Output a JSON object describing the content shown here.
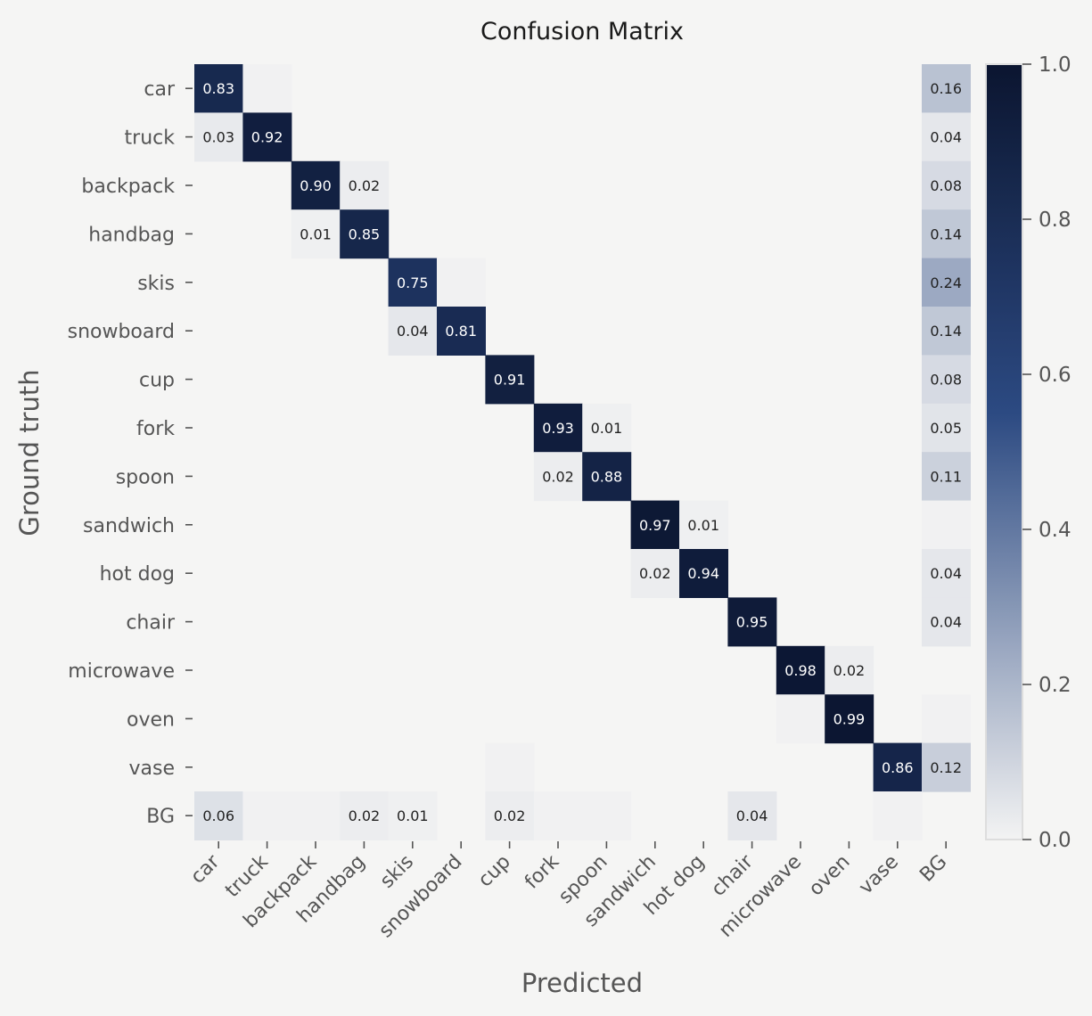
{
  "chart_data": {
    "type": "heatmap",
    "title": "Confusion Matrix",
    "xlabel": "Predicted",
    "ylabel": "Ground truth",
    "rows": [
      "car",
      "truck",
      "backpack",
      "handbag",
      "skis",
      "snowboard",
      "cup",
      "fork",
      "spoon",
      "sandwich",
      "hot dog",
      "chair",
      "microwave",
      "oven",
      "vase",
      "BG"
    ],
    "cols": [
      "car",
      "truck",
      "backpack",
      "handbag",
      "skis",
      "snowboard",
      "cup",
      "fork",
      "spoon",
      "sandwich",
      "hot dog",
      "chair",
      "microwave",
      "oven",
      "vase",
      "BG"
    ],
    "values": [
      [
        0.83,
        0.005,
        0,
        0,
        0,
        0,
        0,
        0,
        0,
        0,
        0,
        0,
        0,
        0,
        0,
        0.16
      ],
      [
        0.03,
        0.92,
        0,
        0,
        0,
        0,
        0,
        0,
        0,
        0,
        0,
        0,
        0,
        0,
        0,
        0.04
      ],
      [
        0,
        0,
        0.9,
        0.02,
        0,
        0,
        0,
        0,
        0,
        0,
        0,
        0,
        0,
        0,
        0,
        0.08
      ],
      [
        0,
        0,
        0.01,
        0.85,
        0,
        0,
        0,
        0,
        0,
        0,
        0,
        0,
        0,
        0,
        0,
        0.14
      ],
      [
        0,
        0,
        0,
        0,
        0.75,
        0.005,
        0,
        0,
        0,
        0,
        0,
        0,
        0,
        0,
        0,
        0.24
      ],
      [
        0,
        0,
        0,
        0,
        0.04,
        0.81,
        0,
        0,
        0,
        0,
        0,
        0,
        0,
        0,
        0,
        0.14
      ],
      [
        0,
        0,
        0,
        0,
        0,
        0,
        0.91,
        0,
        0,
        0,
        0,
        0,
        0,
        0,
        0,
        0.08
      ],
      [
        0,
        0,
        0,
        0,
        0,
        0,
        0,
        0.93,
        0.01,
        0,
        0,
        0,
        0,
        0,
        0,
        0.05
      ],
      [
        0,
        0,
        0,
        0,
        0,
        0,
        0,
        0.02,
        0.88,
        0,
        0,
        0,
        0,
        0,
        0,
        0.11
      ],
      [
        0,
        0,
        0,
        0,
        0,
        0,
        0,
        0,
        0,
        0.97,
        0.01,
        0,
        0,
        0,
        0,
        0.005
      ],
      [
        0,
        0,
        0,
        0,
        0,
        0,
        0,
        0,
        0,
        0.02,
        0.94,
        0,
        0,
        0,
        0,
        0.04
      ],
      [
        0,
        0,
        0,
        0,
        0,
        0,
        0,
        0,
        0,
        0,
        0,
        0.95,
        0,
        0,
        0,
        0.04
      ],
      [
        0,
        0,
        0,
        0,
        0,
        0,
        0,
        0,
        0,
        0,
        0,
        0,
        0.98,
        0.02,
        0,
        0
      ],
      [
        0,
        0,
        0,
        0,
        0,
        0,
        0,
        0,
        0,
        0,
        0,
        0,
        0.005,
        0.99,
        0,
        0.005
      ],
      [
        0,
        0,
        0,
        0,
        0,
        0,
        0.005,
        0,
        0,
        0,
        0,
        0,
        0,
        0,
        0.86,
        0.12
      ],
      [
        0.06,
        0.005,
        0.005,
        0.02,
        0.01,
        0,
        0.02,
        0.005,
        0.005,
        0,
        0,
        0.04,
        0,
        0,
        0.005,
        0
      ]
    ],
    "show_label_min": 0.01,
    "colorscale": {
      "min": 0.0,
      "max": 1.0,
      "low_color": "#f3f3f3",
      "mid_color": "#2c4a82",
      "high_color": "#0b1530"
    },
    "colorbar_ticks": [
      "0.0",
      "0.2",
      "0.4",
      "0.6",
      "0.8",
      "1.0"
    ],
    "colorbar_tick_values": [
      0.0,
      0.2,
      0.4,
      0.6,
      0.8,
      1.0
    ]
  }
}
